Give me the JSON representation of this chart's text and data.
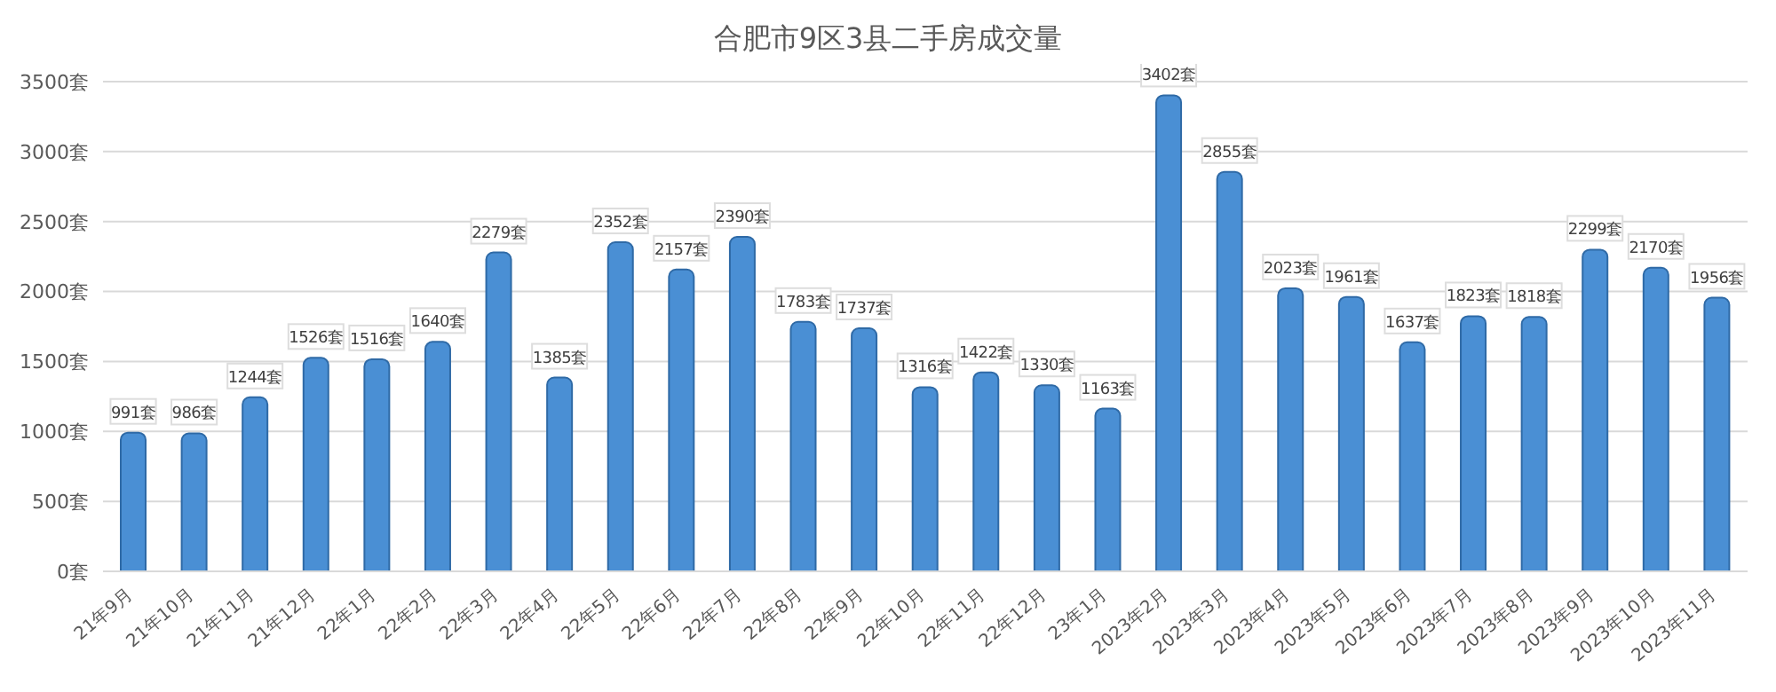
{
  "chart_data": {
    "type": "bar",
    "title": "合肥市9区3县二手房成交量",
    "categories": [
      "21年9月",
      "21年10月",
      "21年11月",
      "21年12月",
      "22年1月",
      "22年2月",
      "22年3月",
      "22年4月",
      "22年5月",
      "22年6月",
      "22年7月",
      "22年8月",
      "22年9月",
      "22年10月",
      "22年11月",
      "22年12月",
      "23年1月",
      "2023年2月",
      "2023年3月",
      "2023年4月",
      "2023年5月",
      "2023年6月",
      "2023年7月",
      "2023年8月",
      "2023年9月",
      "2023年10月",
      "2023年11月"
    ],
    "values": [
      991,
      986,
      1244,
      1526,
      1516,
      1640,
      2279,
      1385,
      2352,
      2157,
      2390,
      1783,
      1737,
      1316,
      1422,
      1330,
      1163,
      3402,
      2855,
      2023,
      1961,
      1637,
      1823,
      1818,
      2299,
      2170,
      1956
    ],
    "value_labels": [
      "991套",
      "986套",
      "1244套",
      "1526套",
      "1516套",
      "1640套",
      "2279套",
      "1385套",
      "2352套",
      "2157套",
      "2390套",
      "1783套",
      "1737套",
      "1316套",
      "1422套",
      "1330套",
      "1163套",
      "3402套",
      "2855套",
      "2023套",
      "1961套",
      "1637套",
      "1823套",
      "1818套",
      "2299套",
      "2170套",
      "1956套"
    ],
    "color": "#4a8fd4",
    "ylim": [
      0,
      3500
    ],
    "yticks": [
      {
        "value": 0,
        "label": "0套"
      },
      {
        "value": 500,
        "label": "500套"
      },
      {
        "value": 1000,
        "label": "1000套"
      },
      {
        "value": 1500,
        "label": "1500套"
      },
      {
        "value": 2000,
        "label": "2000套"
      },
      {
        "value": 2500,
        "label": "2500套"
      },
      {
        "value": 3000,
        "label": "3000套"
      },
      {
        "value": 3500,
        "label": "3500套"
      }
    ],
    "grid": "y",
    "legend": false
  }
}
